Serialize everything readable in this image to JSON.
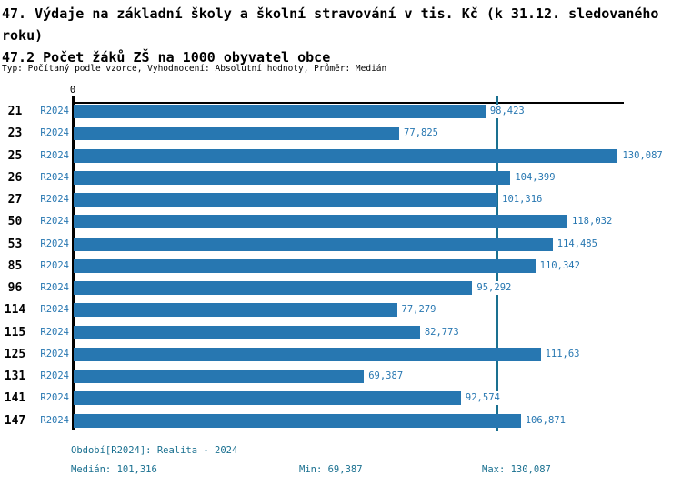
{
  "header": {
    "title": "47. Výdaje na základní školy a školní stravování v tis. Kč (k 31.12. sledovaného roku)",
    "subtitle": "47.2 Počet žáků ZŠ na 1000 obyvatel obce",
    "meta": "Typ: Počítaný podle vzorce, Vyhodnocení: Absolutní hodnoty, Průměr: Medián"
  },
  "chart_data": {
    "type": "bar",
    "orientation": "horizontal",
    "title": "47.2 Počet žáků ZŠ na 1000 obyvatel obce",
    "xlabel": "",
    "ylabel": "",
    "origin_tick_label": "0",
    "xlim": [
      0,
      131.5
    ],
    "grid": false,
    "legend_position": "none",
    "categories": [
      "21",
      "23",
      "25",
      "26",
      "27",
      "50",
      "53",
      "85",
      "96",
      "114",
      "115",
      "125",
      "131",
      "141",
      "147"
    ],
    "series": [
      {
        "name": "R2024",
        "values": [
          98.423,
          77.825,
          130.087,
          104.399,
          101.316,
          118.032,
          114.485,
          110.342,
          95.292,
          77.279,
          82.773,
          111.63,
          69.387,
          92.574,
          106.871
        ]
      }
    ],
    "value_labels": [
      "98,423",
      "77,825",
      "130,087",
      "104,399",
      "101,316",
      "118,032",
      "114,485",
      "110,342",
      "95,292",
      "77,279",
      "82,773",
      "111,63",
      "69,387",
      "92,574",
      "106,871"
    ],
    "median": 101.316,
    "min": 69.387,
    "max": 130.087,
    "colors": {
      "bar": "#2777b1",
      "blue_text": "#2777b1",
      "median_line": "#1a7090",
      "footer_text": "#1a7090",
      "axis": "#000000"
    }
  },
  "footer": {
    "period_line": "Období[R2024]: Realita - 2024",
    "median_label": "Medián: 101,316",
    "min_label": "Min: 69,387",
    "max_label": "Max: 130,087"
  }
}
